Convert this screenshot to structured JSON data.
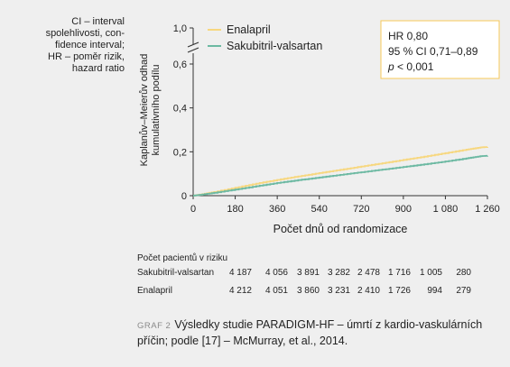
{
  "side_note": {
    "lines": [
      "CI – interval",
      "spolehlivosti, con-",
      "fidence interval;",
      "HR – poměr rizik,",
      "hazard ratio"
    ]
  },
  "hr_box": {
    "line1": "HR 0,80",
    "line2": "95 % CI 0,71–0,89",
    "line3_p": "p",
    "line3_rest": " < 0,001"
  },
  "colors": {
    "enalapril": "#f7d77f",
    "sakubitril": "#6cb9a2",
    "hr_box_border": "#f7c85a",
    "background": "#efefef"
  },
  "risk_table": {
    "title": "Počet pacientů v riziku",
    "rows": [
      {
        "label": "Sakubitril-valsartan",
        "values": [
          "4 187",
          "4 056",
          "3 891",
          "3 282",
          "2 478",
          "1 716",
          "1 005",
          "280"
        ]
      },
      {
        "label": "Enalapril",
        "values": [
          "4 212",
          "4 051",
          "3 860",
          "3 231",
          "2 410",
          "1 726",
          "994",
          "279"
        ]
      }
    ]
  },
  "caption": {
    "label": "GRAF 2",
    "text": "Výsledky studie PARADIGM-HF – úmrtí z kardio-vaskulárních příčin; podle [17] – McMurray, et al., 2014."
  },
  "chart_data": {
    "type": "line",
    "xlabel": "Počet dnů od randomizace",
    "ylabel_line1": "Kaplanův–Meierův odhad",
    "ylabel_line2": "kumulativního podílu",
    "x_ticks": [
      0,
      180,
      360,
      540,
      720,
      900,
      1080,
      1260
    ],
    "x_tick_labels": [
      "0",
      "180",
      "360",
      "540",
      "720",
      "900",
      "1 080",
      "1 260"
    ],
    "xlim": [
      0,
      1260
    ],
    "y_ticks": [
      0,
      0.2,
      0.4,
      0.6
    ],
    "y_tick_labels": [
      "0",
      "0,2",
      "0,4",
      "0,6"
    ],
    "y_break_tick_label": "1,0",
    "ylim": [
      0,
      0.6
    ],
    "axis_break": true,
    "grid": false,
    "legend_position": "top-left",
    "series": [
      {
        "name": "Enalapril",
        "x": [
          0,
          30,
          90,
          180,
          270,
          360,
          450,
          540,
          630,
          720,
          810,
          900,
          990,
          1080,
          1170,
          1230,
          1260
        ],
        "values": [
          0,
          0.005,
          0.017,
          0.036,
          0.055,
          0.072,
          0.088,
          0.103,
          0.118,
          0.133,
          0.148,
          0.163,
          0.178,
          0.194,
          0.21,
          0.22,
          0.222
        ]
      },
      {
        "name": "Sakubitril-valsartan",
        "x": [
          0,
          30,
          90,
          180,
          270,
          360,
          450,
          540,
          630,
          720,
          810,
          900,
          990,
          1080,
          1170,
          1230,
          1260
        ],
        "values": [
          0,
          0.004,
          0.013,
          0.028,
          0.043,
          0.058,
          0.071,
          0.083,
          0.095,
          0.107,
          0.119,
          0.131,
          0.143,
          0.156,
          0.17,
          0.18,
          0.182
        ]
      }
    ]
  }
}
